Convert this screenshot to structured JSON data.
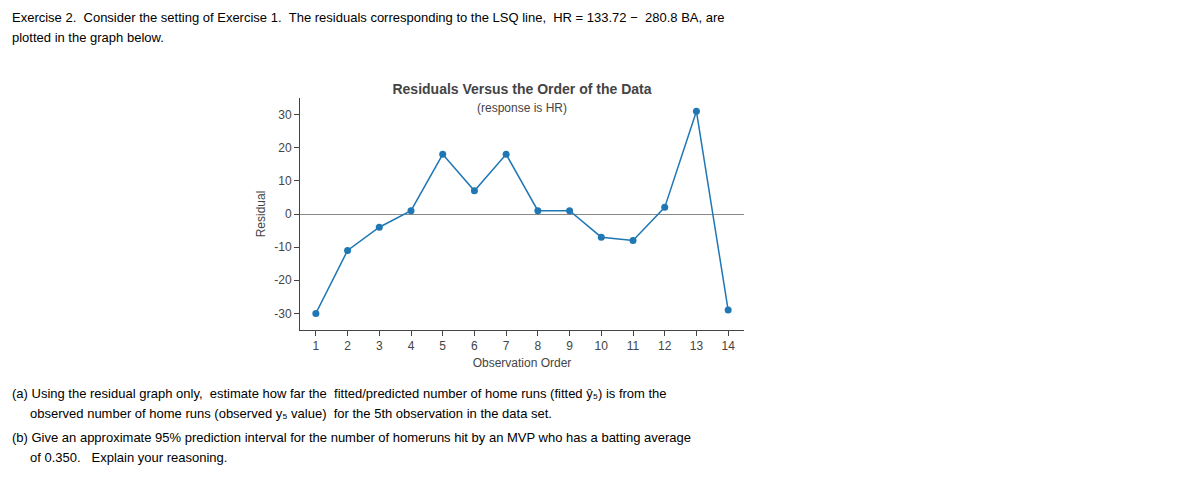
{
  "chart_data": {
    "type": "line",
    "title": "Residuals Versus the Order of the Data",
    "subtitle": "(response is HR)",
    "x_label": "Observation Order",
    "y_label": "Residual",
    "x": [
      1,
      2,
      3,
      4,
      5,
      6,
      7,
      8,
      9,
      10,
      11,
      12,
      13,
      14
    ],
    "values": [
      -30,
      -11,
      -4,
      1,
      18,
      7,
      18,
      1,
      1,
      -7,
      -8,
      2,
      31,
      -29
    ],
    "xlim": [
      0.5,
      14.5
    ],
    "ylim": [
      -35,
      35
    ],
    "xticks": [
      1,
      2,
      3,
      4,
      5,
      6,
      7,
      8,
      9,
      10,
      11,
      12,
      13,
      14
    ],
    "yticks": [
      -30,
      -20,
      -10,
      0,
      10,
      20,
      30
    ],
    "marker": "circle",
    "grid": false,
    "annotations": [
      "Exercise 2.  Consider the setting of Exercise 1.  The residuals corresponding to the LSQ line,  HR = 133.72 −  280.8 BA, are",
      "plotted in the graph below.",
      "(a) Using the residual graph only,  estimate how far the  fitted/predicted number of home runs (fitted ŷ₅) is from the",
      "     observed number of home runs (observed y₅ value)  for the 5th observation in the data set.",
      "(b) Give an approximate 95% prediction interval for the number of homeruns hit by an MVP who has a batting average",
      "     of 0.350.   Explain your reasoning."
    ]
  }
}
